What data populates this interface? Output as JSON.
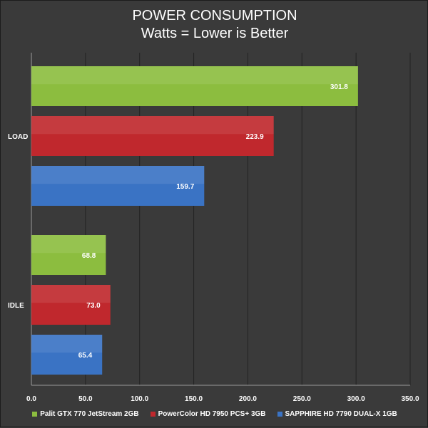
{
  "chart_data": {
    "type": "bar",
    "orientation": "horizontal",
    "title": "POWER CONSUMPTION",
    "subtitle": "Watts = Lower is Better",
    "categories": [
      "LOAD",
      "IDLE"
    ],
    "series": [
      {
        "name": "Palit GTX 770 JetStream 2GB",
        "color": "#8cbd3f",
        "values": [
          301.8,
          68.8
        ]
      },
      {
        "name": "PowerColor HD 7950 PCS+ 3GB",
        "color": "#c0282d",
        "values": [
          223.9,
          73.0
        ]
      },
      {
        "name": "SAPPHIRE HD 7790 DUAL-X 1GB",
        "color": "#3a73c4",
        "values": [
          159.7,
          65.4
        ]
      }
    ],
    "xlim": [
      0,
      350
    ],
    "xticks": [
      "0.0",
      "50.0",
      "100.0",
      "150.0",
      "200.0",
      "250.0",
      "300.0",
      "350.0"
    ],
    "grid": true,
    "legend_position": "bottom",
    "background": "#3a3a3a",
    "gridline_color": "#222222"
  }
}
